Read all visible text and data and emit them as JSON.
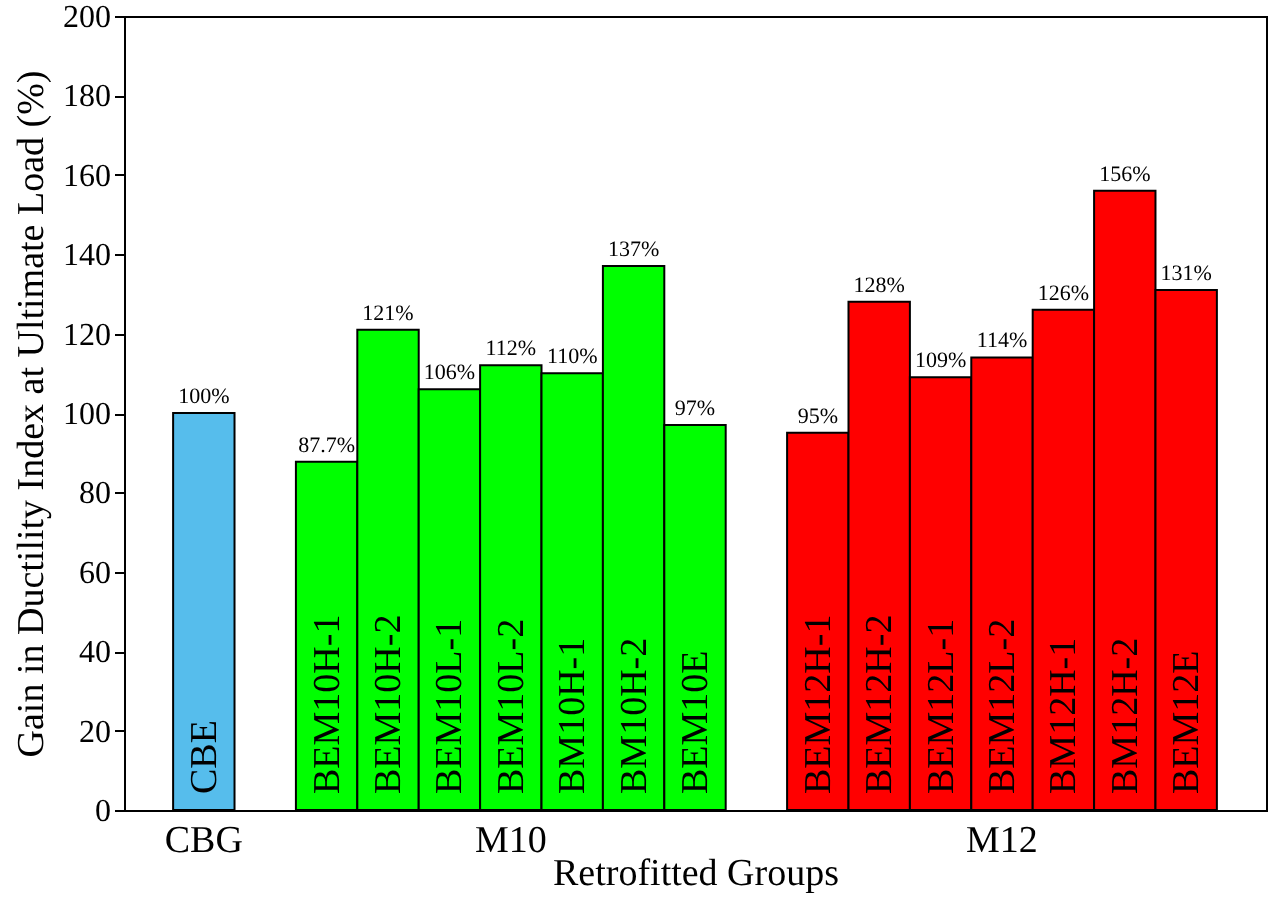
{
  "chart_data": {
    "type": "bar",
    "xlabel": "Retrofitted Groups",
    "ylabel": "Gain in Ductility Index at Ultimate Load (%)",
    "categories": [
      "CBE",
      null,
      "BEM10H-1",
      "BEM10H-2",
      "BEM10L-1",
      "BEM10L-2",
      "BM10H-1",
      "BM10H-2",
      "BEM10E",
      null,
      "BEM12H-1",
      "BEM12H-2",
      "BEM12L-1",
      "BEM12L-2",
      "BM12H-1",
      "BM12H-2",
      "BEM12E"
    ],
    "values": [
      100,
      null,
      87.7,
      121,
      106,
      112,
      110,
      137,
      97,
      null,
      95,
      128,
      109,
      114,
      126,
      156,
      131
    ],
    "colors": [
      "#56bdec",
      null,
      "#00ff00",
      "#00ff00",
      "#00ff00",
      "#00ff00",
      "#00ff00",
      "#00ff00",
      "#00ff00",
      null,
      "#ff0000",
      "#ff0000",
      "#ff0000",
      "#ff0000",
      "#ff0000",
      "#ff0000",
      "#ff0000"
    ],
    "value_labels": [
      "100%",
      null,
      "87.7%",
      "121%",
      "106%",
      "112%",
      "110%",
      "137%",
      "97%",
      null,
      "95%",
      "128%",
      "109%",
      "114%",
      "126%",
      "156%",
      "131%"
    ],
    "annotations": [
      "CBG",
      "M10",
      "M12"
    ],
    "ylim": [
      0,
      200
    ],
    "yticks": [
      0,
      20,
      40,
      60,
      80,
      100,
      120,
      140,
      160,
      180,
      200
    ],
    "grid": false
  }
}
